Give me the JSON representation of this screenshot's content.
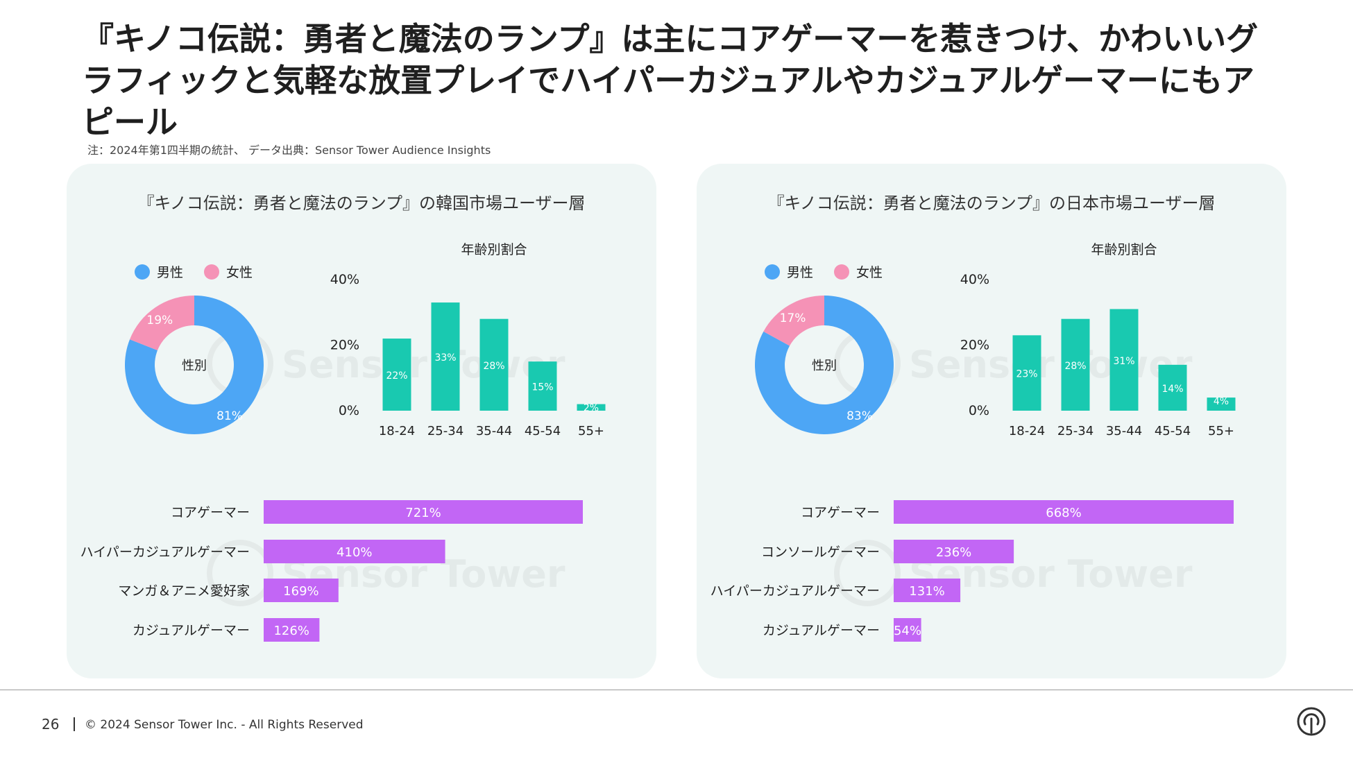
{
  "title": "『キノコ伝説：勇者と魔法のランプ』は主にコアゲーマーを惹きつけ、かわいいグラフィックと気軽な放置プレイでハイパーカジュアルやカジュアルゲーマーにもアピール",
  "note": "注：2024年第1四半期の統計、 データ出典：Sensor Tower   Audience Insights",
  "watermark": "Sensor Tower",
  "colors": {
    "male": "#4da6f5",
    "female": "#f592b6",
    "age_bar": "#19c9b0",
    "interest_bar": "#c266f5",
    "panel_bg": "#eff6f5"
  },
  "footer": {
    "page": "26",
    "copyright": "© 2024 Sensor Tower Inc. - All Rights Reserved",
    "logo_icon": "sensor-tower-logo-icon"
  },
  "chart_data": [
    {
      "type": "pie",
      "title": "『キノコ伝説：勇者と魔法のランプ』の韓国市場ユーザー層",
      "center_label": "性別",
      "legend": [
        "男性",
        "女性"
      ],
      "slices": [
        {
          "name": "男性",
          "value": 81,
          "label": "81%"
        },
        {
          "name": "女性",
          "value": 19,
          "label": "19%"
        }
      ]
    },
    {
      "type": "bar",
      "title": "年齢別割合",
      "categories": [
        "18-24",
        "25-34",
        "35-44",
        "45-54",
        "55+"
      ],
      "values": [
        22,
        33,
        28,
        15,
        2
      ],
      "labels": [
        "22%",
        "33%",
        "28%",
        "15%",
        "2%"
      ],
      "ylim": [
        0,
        40
      ],
      "yticks": [
        0,
        20,
        40
      ],
      "yticklabels": [
        "0%",
        "20%",
        "40%"
      ]
    },
    {
      "type": "bar",
      "orientation": "horizontal",
      "categories": [
        "コアゲーマー",
        "ハイパーカジュアルゲーマー",
        "マンガ＆アニメ愛好家",
        "カジュアルゲーマー"
      ],
      "values": [
        721,
        410,
        169,
        126
      ],
      "labels": [
        "721%",
        "410%",
        "169%",
        "126%"
      ]
    },
    {
      "type": "pie",
      "title": "『キノコ伝説：勇者と魔法のランプ』の日本市場ユーザー層",
      "center_label": "性別",
      "legend": [
        "男性",
        "女性"
      ],
      "slices": [
        {
          "name": "男性",
          "value": 83,
          "label": "83%"
        },
        {
          "name": "女性",
          "value": 17,
          "label": "17%"
        }
      ]
    },
    {
      "type": "bar",
      "title": "年齢別割合",
      "categories": [
        "18-24",
        "25-34",
        "35-44",
        "45-54",
        "55+"
      ],
      "values": [
        23,
        28,
        31,
        14,
        4
      ],
      "labels": [
        "23%",
        "28%",
        "31%",
        "14%",
        "4%"
      ],
      "ylim": [
        0,
        40
      ],
      "yticks": [
        0,
        20,
        40
      ],
      "yticklabels": [
        "0%",
        "20%",
        "40%"
      ]
    },
    {
      "type": "bar",
      "orientation": "horizontal",
      "categories": [
        "コアゲーマー",
        "コンソールゲーマー",
        "ハイパーカジュアルゲーマー",
        "カジュアルゲーマー"
      ],
      "values": [
        668,
        236,
        131,
        54
      ],
      "labels": [
        "668%",
        "236%",
        "131%",
        "54%"
      ]
    }
  ]
}
